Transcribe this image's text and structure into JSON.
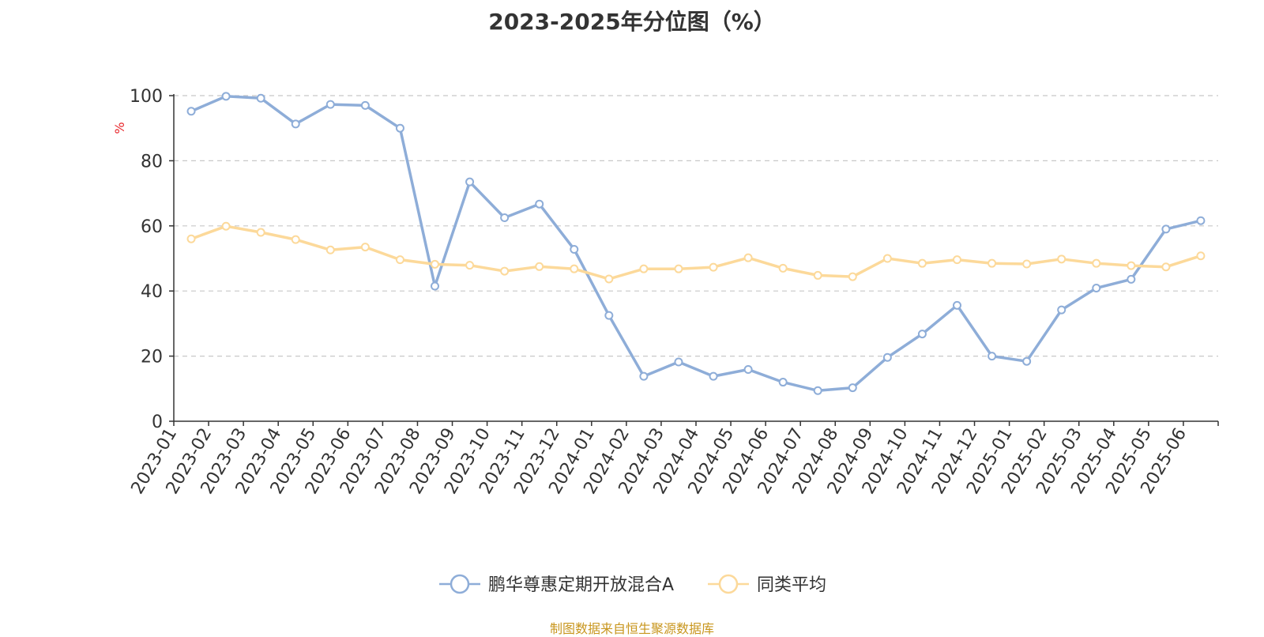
{
  "page": {
    "source_note": "制图数据来自恒生聚源数据库"
  },
  "chart_data": {
    "type": "line",
    "title": "2023-2025年分位图（%）",
    "ylabel": "%",
    "ylim": [
      0,
      100
    ],
    "yticks": [
      0,
      20,
      40,
      60,
      80,
      100
    ],
    "grid": true,
    "legend_position": "bottom-center",
    "categories": [
      "2023-01",
      "2023-02",
      "2023-03",
      "2023-04",
      "2023-05",
      "2023-06",
      "2023-07",
      "2023-08",
      "2023-09",
      "2023-10",
      "2023-11",
      "2023-12",
      "2024-01",
      "2024-02",
      "2024-03",
      "2024-04",
      "2024-05",
      "2024-06",
      "2024-07",
      "2024-08",
      "2024-09",
      "2024-10",
      "2024-11",
      "2024-12",
      "2025-01",
      "2025-02",
      "2025-03",
      "2025-04",
      "2025-05",
      "2025-06"
    ],
    "series": [
      {
        "name": "鹏华尊惠定期开放混合A",
        "color": "#8eadd8",
        "values": [
          95.2,
          99.8,
          99.2,
          91.3,
          97.3,
          97.0,
          90.0,
          41.5,
          73.5,
          62.5,
          66.7,
          52.8,
          32.5,
          13.8,
          18.2,
          13.8,
          15.9,
          12.0,
          9.4,
          10.3,
          19.6,
          26.8,
          35.6,
          20.0,
          18.4,
          34.2,
          40.9,
          43.6,
          59.0,
          61.6
        ]
      },
      {
        "name": "同类平均",
        "color": "#fcd99a",
        "values": [
          56.0,
          59.9,
          58.0,
          55.8,
          52.6,
          53.5,
          49.6,
          48.2,
          47.9,
          46.1,
          47.5,
          46.8,
          43.7,
          46.8,
          46.8,
          47.3,
          50.2,
          47.0,
          44.8,
          44.4,
          50.0,
          48.5,
          49.6,
          48.5,
          48.3,
          49.8,
          48.5,
          47.8,
          47.4,
          50.8
        ]
      }
    ]
  }
}
